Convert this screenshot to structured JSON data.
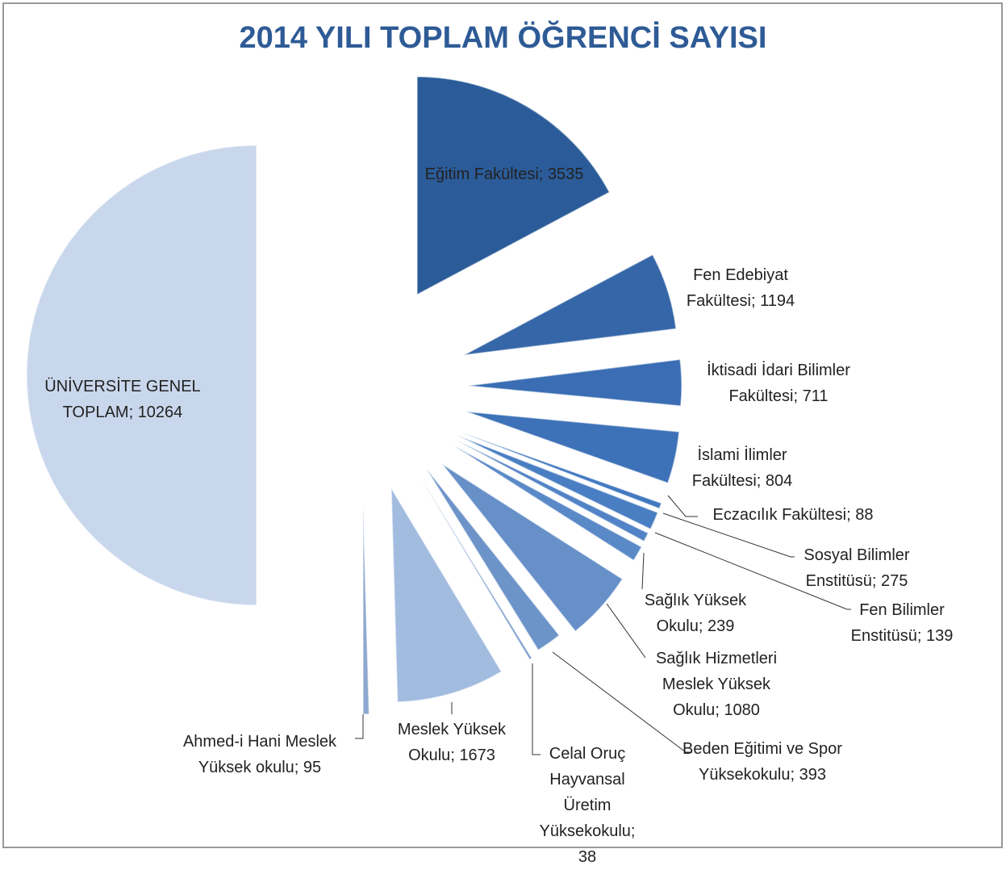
{
  "chart_data": {
    "type": "pie",
    "title": "2014 YILI TOPLAM ÖĞRENCİ SAYISI",
    "label_separator": "; ",
    "categories": [
      "Eğitim Fakültesi",
      "Fen Edebiyat Fakültesi",
      "İktisadi İdari Bilimler Fakültesi",
      "İslami İlimler Fakültesi",
      "Eczacılık Fakültesi",
      "Sosyal Bilimler Enstitüsü",
      "Fen Bilimler Enstitüsü",
      "Sağlık Yüksek Okulu",
      "Sağlık Hizmetleri Meslek Yüksek Okulu",
      "Beden Eğitimi ve Spor Yüksekokulu",
      "Celal Oruç Hayvansal Üretim Yüksekokulu",
      "Meslek Yüksek Okulu",
      "Ahmed-i Hani Meslek Yüksek okulu",
      "ÜNİVERSİTE GENEL TOPLAM"
    ],
    "values": [
      3535,
      1194,
      711,
      804,
      88,
      275,
      139,
      239,
      1080,
      393,
      38,
      1673,
      95,
      10264
    ],
    "colors": [
      "#2b5c99",
      "#3566a8",
      "#3a6db3",
      "#3e72b8",
      "#4279c0",
      "#4a7ec3",
      "#5283c6",
      "#5a89c8",
      "#6790c9",
      "#6d94c9",
      "#7499cc",
      "#a2bce0",
      "#8ea8cf",
      "#c9d7ec"
    ]
  }
}
